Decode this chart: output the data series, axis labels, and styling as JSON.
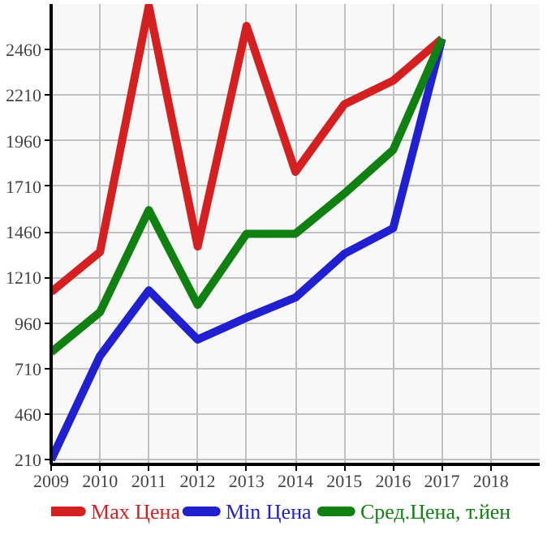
{
  "chart_data": {
    "type": "line",
    "x": [
      2009,
      2010,
      2011,
      2012,
      2013,
      2014,
      2015,
      2016,
      2017
    ],
    "series": [
      {
        "name": "Max Цена",
        "color": "#d42020",
        "values": [
          1130,
          1350,
          2700,
          1380,
          2590,
          1790,
          2160,
          2290,
          2520
        ]
      },
      {
        "name": "Min Цена",
        "color": "#2020d0",
        "values": [
          210,
          780,
          1140,
          870,
          990,
          1100,
          1340,
          1480,
          2520
        ]
      },
      {
        "name": "Сред.Цена, т.йен",
        "color": "#108010",
        "values": [
          800,
          1020,
          1580,
          1060,
          1450,
          1450,
          1670,
          1910,
          2520
        ]
      }
    ],
    "xlim": [
      2009,
      2019
    ],
    "xticks": [
      2009,
      2010,
      2011,
      2012,
      2013,
      2014,
      2015,
      2016,
      2017,
      2018
    ],
    "ylim": [
      185,
      2710
    ],
    "yticks": [
      210,
      460,
      710,
      960,
      1210,
      1460,
      1710,
      1960,
      2210,
      2460
    ],
    "grid": true,
    "legend": "bottom",
    "marker": "none",
    "line_style": "solid"
  }
}
